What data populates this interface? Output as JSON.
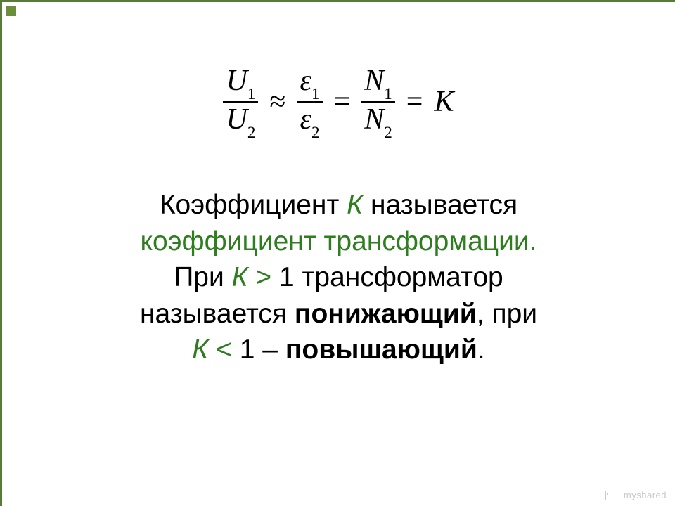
{
  "colors": {
    "border": "#5a7a3a",
    "text": "#000000",
    "accent": "#2e7d1f",
    "watermark": "#c9c9c9",
    "background": "#ffffff"
  },
  "formula": {
    "frac1_num": "U",
    "frac1_num_sub": "1",
    "frac1_den": "U",
    "frac1_den_sub": "2",
    "op1": "≈",
    "frac2_num": "ε",
    "frac2_num_sub": "1",
    "frac2_den": "ε",
    "frac2_den_sub": "2",
    "op2": "=",
    "frac3_num": "N",
    "frac3_num_sub": "1",
    "frac3_den": "N",
    "frac3_den_sub": "2",
    "op3": "=",
    "rhs": "K"
  },
  "text": {
    "line1_a": "Коэффициент ",
    "line1_K": "К",
    "line1_b": " называется",
    "line2": "коэффициент трансформации.",
    "line3_a": "При ",
    "line3_K": "К",
    "line3_gt": " > ",
    "line3_one": "1",
    "line3_b": " трансформатор",
    "line4_a": "называется ",
    "line4_bold": "понижающий",
    "line4_b": ", при",
    "line5_K": "К",
    "line5_lt": " < ",
    "line5_one": "1",
    "line5_dash": " – ",
    "line5_bold": "повышающий",
    "line5_dot": "."
  },
  "watermark": "myshared"
}
